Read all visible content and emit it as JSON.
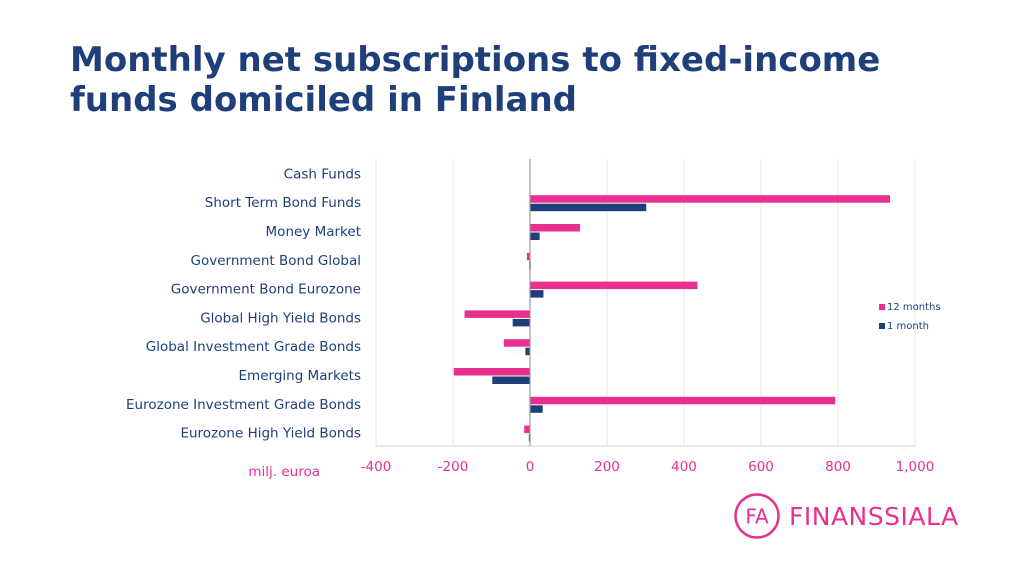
{
  "header": {
    "title": "Monthly net subscriptions to fixed-income funds domiciled in Finland"
  },
  "colors": {
    "series_12m": "#e8308f",
    "series_1m": "#1f3f7a",
    "gridline": "#e6e6e6",
    "zero_line": "#999999"
  },
  "chart_data": {
    "type": "bar",
    "orientation": "horizontal",
    "categories": [
      "Cash Funds",
      "Short Term Bond Funds",
      "Money Market",
      "Government Bond Global",
      "Government Bond Eurozone",
      "Global High Yield Bonds",
      "Global Investment Grade Bonds",
      "Emerging Markets",
      "Eurozone Investment Grade Bonds",
      "Eurozone High Yield Bonds"
    ],
    "series": [
      {
        "name": "12 months",
        "values": [
          0,
          935,
          130,
          -8,
          435,
          -170,
          -68,
          -198,
          793,
          -15
        ]
      },
      {
        "name": "1 month",
        "values": [
          0,
          302,
          25,
          -2,
          35,
          -45,
          -12,
          -98,
          33,
          -3
        ]
      }
    ],
    "xlim": [
      -400,
      1000
    ],
    "xticks": [
      "-400",
      "-200",
      "0",
      "200",
      "400",
      "600",
      "800",
      "1,000"
    ],
    "xlabel": "milj. euroa",
    "ylabel": "",
    "grid": true,
    "legend_position": "right"
  },
  "brand": {
    "logo_mark": "FA",
    "logo_text": "FINANSSIALA"
  }
}
